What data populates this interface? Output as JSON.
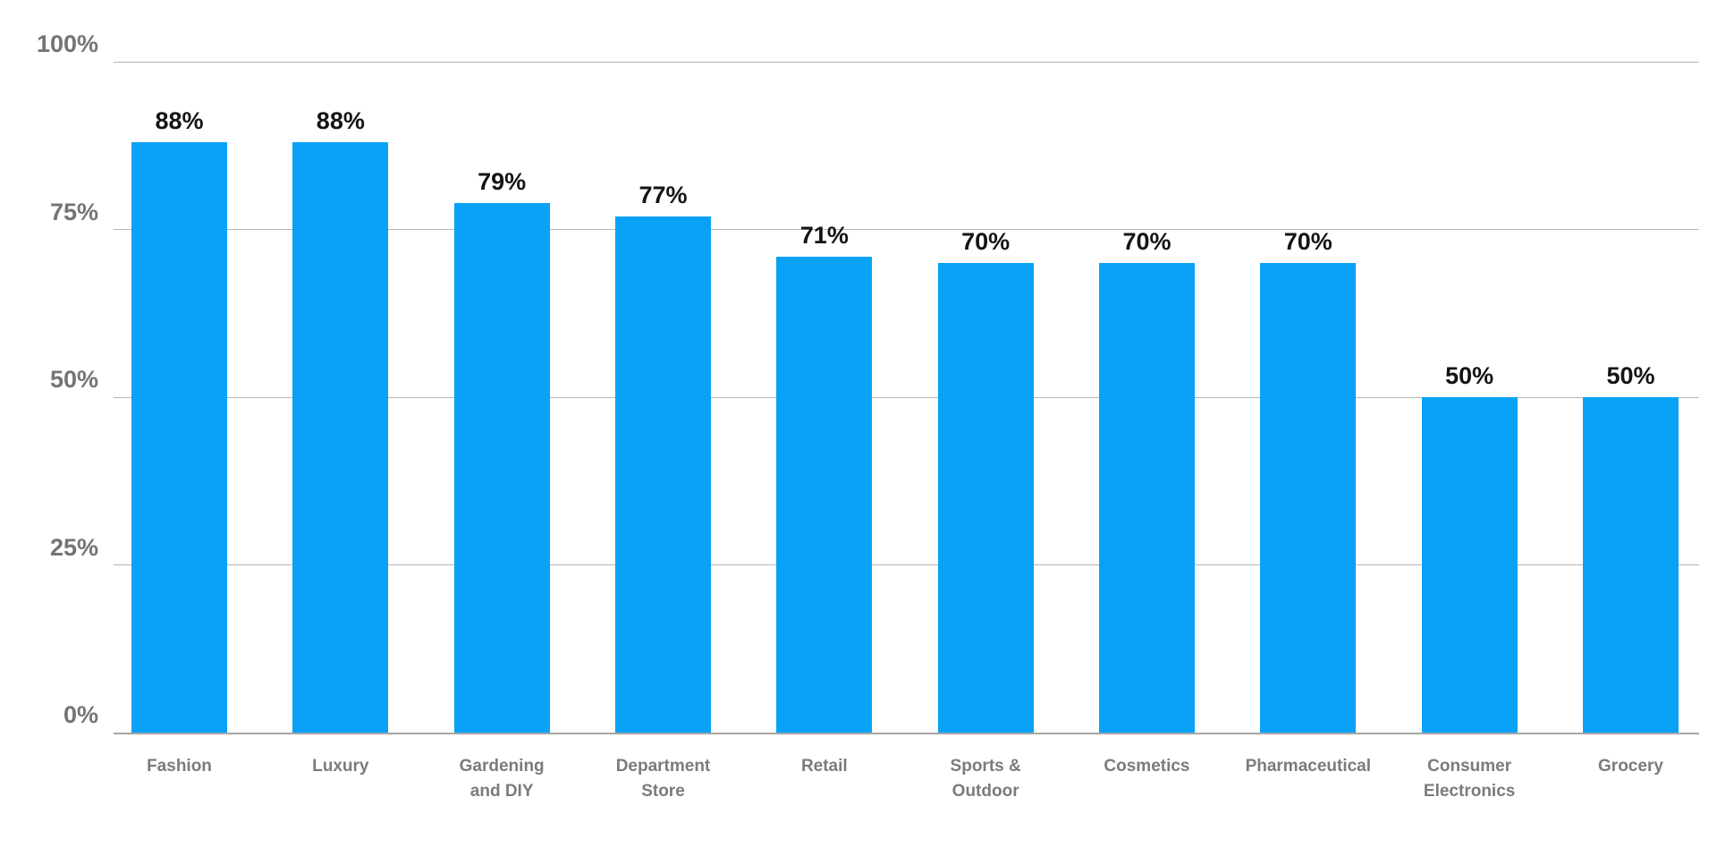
{
  "chart_data": {
    "type": "bar",
    "title": "",
    "categories": [
      "Fashion",
      "Luxury",
      "Gardening and DIY",
      "Department Store",
      "Retail",
      "Sports & Outdoor",
      "Cosmetics",
      "Pharmaceutical",
      "Consumer Electronics",
      "Grocery"
    ],
    "category_display": [
      "Fashion",
      "Luxury",
      "Gardening\nand DIY",
      "Department\nStore",
      "Retail",
      "Sports &\nOutdoor",
      "Cosmetics",
      "Pharmaceutical",
      "Consumer\nElectronics",
      "Grocery"
    ],
    "values": [
      88,
      88,
      79,
      77,
      71,
      70,
      70,
      70,
      50,
      50
    ],
    "value_labels": [
      "88%",
      "88%",
      "79%",
      "77%",
      "71%",
      "70%",
      "70%",
      "70%",
      "50%",
      "50%"
    ],
    "xlabel": "",
    "ylabel": "",
    "ylim": [
      0,
      100
    ],
    "yticks": [
      {
        "value": 0,
        "label": "0%"
      },
      {
        "value": 25,
        "label": "25%"
      },
      {
        "value": 50,
        "label": "50%"
      },
      {
        "value": 75,
        "label": "75%"
      },
      {
        "value": 100,
        "label": "100%"
      }
    ],
    "grid": "horizontal",
    "legend": "none",
    "colors": {
      "bar": "#0aa2f7",
      "gridline": "#b6b6b6",
      "baseline": "#a6a6a6",
      "value_label": "#141414",
      "axis_tick_label": "#747474",
      "category_label": "#7b7b7b",
      "background": "#ffffff"
    }
  }
}
